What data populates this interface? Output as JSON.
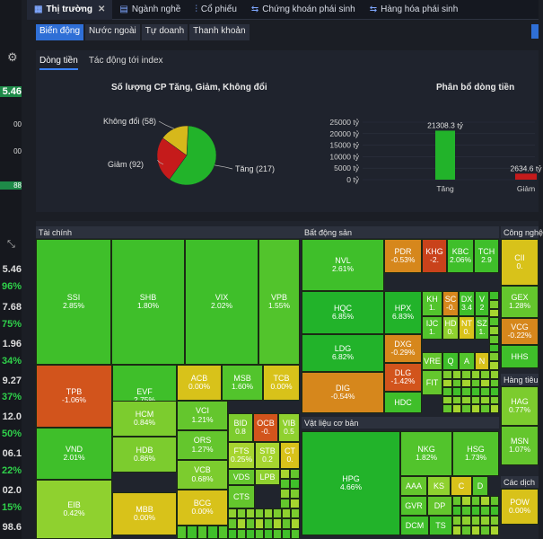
{
  "left_strip": {
    "values": [
      "5.46",
      "00",
      "00",
      "88",
      "5.46",
      "96%",
      "7.68",
      "75%",
      "1.96",
      "34%",
      "9.27",
      "37%",
      "12.0",
      "50%",
      "06.1",
      "22%",
      "02.0",
      "15%",
      "98.6"
    ]
  },
  "nav": {
    "tabs": [
      {
        "label": "Thị trường",
        "icon": "grid-icon",
        "active": true
      },
      {
        "label": "Ngành nghề",
        "icon": "table-icon",
        "active": false
      },
      {
        "label": "Cổ phiếu",
        "icon": "chart-icon",
        "active": false
      },
      {
        "label": "Chứng khoán phái sinh",
        "icon": "split-icon",
        "active": false
      },
      {
        "label": "Hàng hóa phái sinh",
        "icon": "split-icon",
        "active": false
      }
    ],
    "close_glyph": "✕"
  },
  "sub_tabs": [
    "Biến động",
    "Nước ngoài",
    "Tự doanh",
    "Thanh khoản"
  ],
  "chart_tabs": [
    "Dòng tiền",
    "Tác động tới index"
  ],
  "chart_data": [
    {
      "type": "pie",
      "title": "Số lượng CP Tăng, Giảm, Không đổi",
      "slices": [
        {
          "label": "Tăng",
          "value": 217,
          "text": "Tăng (217)",
          "color": "#22b32a"
        },
        {
          "label": "Giảm",
          "value": 92,
          "text": "Giảm (92)",
          "color": "#c51b1b"
        },
        {
          "label": "Không đổi",
          "value": 58,
          "text": "Không đổi (58)",
          "color": "#d6b81b"
        }
      ]
    },
    {
      "type": "bar",
      "title": "Phân bổ dòng tiền",
      "categories": [
        "Tăng",
        "Giảm"
      ],
      "values": [
        21308.3,
        2634.6
      ],
      "data_labels": [
        "21308.3 tỷ",
        "2634.6 tỷ"
      ],
      "colors": [
        "#22b32a",
        "#c51b1b"
      ],
      "ylim": [
        0,
        25000
      ],
      "yticks": [
        "0 tỷ",
        "5000 tỷ",
        "10000 tỷ",
        "15000 tỷ",
        "20000 tỷ",
        "25000 tỷ"
      ]
    }
  ],
  "heatmap": {
    "sectors": [
      "Tài chính",
      "Bất động sản",
      "Công nghệ",
      "Vật liệu cơ bản",
      "Hàng tiêu",
      "Các dịch"
    ],
    "tiles": [
      {
        "t": "SSI",
        "p": "2.85%",
        "c": "#3fbf2a"
      },
      {
        "t": "SHB",
        "p": "1.80%",
        "c": "#3fbf2a"
      },
      {
        "t": "VIX",
        "p": "2.02%",
        "c": "#3fbf2a"
      },
      {
        "t": "VPB",
        "p": "1.55%",
        "c": "#52c42c"
      },
      {
        "t": "TPB",
        "p": "-1.06%",
        "c": "#d2541c"
      },
      {
        "t": "EVF",
        "p": "2.75%",
        "c": "#3fbf2a"
      },
      {
        "t": "ACB",
        "p": "0.00%",
        "c": "#d8c21a"
      },
      {
        "t": "MSB",
        "p": "1.60%",
        "c": "#52c42c"
      },
      {
        "t": "TCB",
        "p": "0.00%",
        "c": "#d8c21a"
      },
      {
        "t": "VND",
        "p": "2.01%",
        "c": "#3fbf2a"
      },
      {
        "t": "HCM",
        "p": "0.84%",
        "c": "#7ccc2e"
      },
      {
        "t": "VCI",
        "p": "1.21%",
        "c": "#64c62d"
      },
      {
        "t": "BID",
        "p": "0.8",
        "c": "#7ccc2e"
      },
      {
        "t": "OCB",
        "p": "-0.",
        "c": "#d2541c"
      },
      {
        "t": "VIB",
        "p": "0.5",
        "c": "#8fd12f"
      },
      {
        "t": "HDB",
        "p": "0.86%",
        "c": "#7ccc2e"
      },
      {
        "t": "ORS",
        "p": "1.27%",
        "c": "#64c62d"
      },
      {
        "t": "FTS",
        "p": "0.25%",
        "c": "#a6d52f"
      },
      {
        "t": "STB",
        "p": "0.2",
        "c": "#a6d52f"
      },
      {
        "t": "CT",
        "p": "0.",
        "c": "#d8c21a"
      },
      {
        "t": "EIB",
        "p": "0.42%",
        "c": "#8fd12f"
      },
      {
        "t": "VCB",
        "p": "0.68%",
        "c": "#7ccc2e"
      },
      {
        "t": "VDS",
        "p": "",
        "c": "#64c62d"
      },
      {
        "t": "LPB",
        "p": "",
        "c": "#8fd12f"
      },
      {
        "t": "MBB",
        "p": "0.00%",
        "c": "#d8c21a"
      },
      {
        "t": "BCG",
        "p": "0.00%",
        "c": "#d8c21a"
      },
      {
        "t": "CTS",
        "p": "",
        "c": "#64c62d"
      },
      {
        "t": "NVL",
        "p": "2.61%",
        "c": "#3fbf2a"
      },
      {
        "t": "PDR",
        "p": "-0.53%",
        "c": "#d6871c"
      },
      {
        "t": "KHG",
        "p": "-2.",
        "c": "#c9421b"
      },
      {
        "t": "KBC",
        "p": "2.06%",
        "c": "#3fbf2a"
      },
      {
        "t": "TCH",
        "p": "2.9",
        "c": "#3fbf2a"
      },
      {
        "t": "HQC",
        "p": "6.85%",
        "c": "#22b32a"
      },
      {
        "t": "HPX",
        "p": "6.83%",
        "c": "#22b32a"
      },
      {
        "t": "KH",
        "p": "1.",
        "c": "#52c42c"
      },
      {
        "t": "SC",
        "p": "-0.",
        "c": "#d6871c"
      },
      {
        "t": "DX",
        "p": "3.4",
        "c": "#3fbf2a"
      },
      {
        "t": "V",
        "p": "2",
        "c": "#3fbf2a"
      },
      {
        "t": "LDG",
        "p": "6.82%",
        "c": "#22b32a"
      },
      {
        "t": "DXG",
        "p": "-0.29%",
        "c": "#d6871c"
      },
      {
        "t": "IJC",
        "p": "1.",
        "c": "#52c42c"
      },
      {
        "t": "HD",
        "p": "0.",
        "c": "#8fd12f"
      },
      {
        "t": "NT",
        "p": "0.",
        "c": "#d8c21a"
      },
      {
        "t": "SZ",
        "p": "1.",
        "c": "#52c42c"
      },
      {
        "t": "DIG",
        "p": "-0.54%",
        "c": "#d6871c"
      },
      {
        "t": "DLG",
        "p": "-1.42%",
        "c": "#d2541c"
      },
      {
        "t": "VRE",
        "p": "",
        "c": "#64c62d"
      },
      {
        "t": "Q",
        "p": "",
        "c": "#3fbf2a"
      },
      {
        "t": "A",
        "p": "",
        "c": "#52c42c"
      },
      {
        "t": "N",
        "p": "",
        "c": "#d8c21a"
      },
      {
        "t": "FIT",
        "p": "",
        "c": "#64c62d"
      },
      {
        "t": "HDC",
        "p": "",
        "c": "#3fbf2a"
      },
      {
        "t": "CII",
        "p": "0.",
        "c": "#d8c21a"
      },
      {
        "t": "GEX",
        "p": "1.28%",
        "c": "#64c62d"
      },
      {
        "t": "VCG",
        "p": "-0.22%",
        "c": "#d6871c"
      },
      {
        "t": "HHS",
        "p": "",
        "c": "#3fbf2a"
      },
      {
        "t": "HPG",
        "p": "4.66%",
        "c": "#22b32a"
      },
      {
        "t": "NKG",
        "p": "1.82%",
        "c": "#52c42c"
      },
      {
        "t": "HSG",
        "p": "1.73%",
        "c": "#52c42c"
      },
      {
        "t": "AAA",
        "p": "",
        "c": "#64c62d"
      },
      {
        "t": "KS",
        "p": "",
        "c": "#8fd12f"
      },
      {
        "t": "C",
        "p": "",
        "c": "#d8c21a"
      },
      {
        "t": "D",
        "p": "",
        "c": "#52c42c"
      },
      {
        "t": "GVR",
        "p": "",
        "c": "#52c42c"
      },
      {
        "t": "DP",
        "p": "",
        "c": "#64c62d"
      },
      {
        "t": "DCM",
        "p": "",
        "c": "#3fbf2a"
      },
      {
        "t": "TS",
        "p": "",
        "c": "#3fbf2a"
      },
      {
        "t": "HAG",
        "p": "0.77%",
        "c": "#7ccc2e"
      },
      {
        "t": "MSN",
        "p": "1.07%",
        "c": "#64c62d"
      },
      {
        "t": "POW",
        "p": "0.00%",
        "c": "#d8c21a"
      }
    ]
  }
}
